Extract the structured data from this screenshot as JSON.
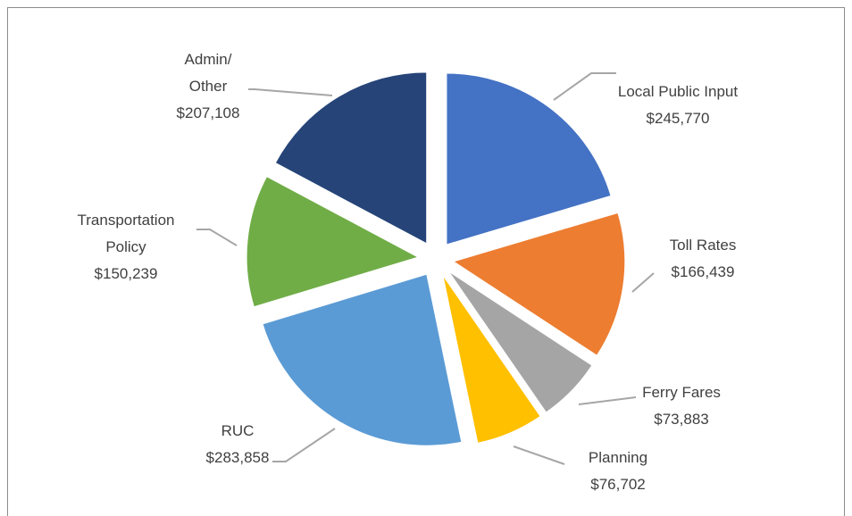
{
  "chart_data": {
    "type": "pie",
    "categories": [
      "Local Public Input",
      "Toll Rates",
      "Ferry Fares",
      "Planning",
      "RUC",
      "Transportation\nPolicy",
      "Admin/\nOther"
    ],
    "values": [
      245770,
      166439,
      73883,
      76702,
      283858,
      150239,
      207108
    ],
    "value_labels": [
      "$245,770",
      "$166,439",
      "$73,883",
      "$76,702",
      "$283,858",
      "$150,239",
      "$207,108"
    ],
    "colors": [
      "#4472c4",
      "#ed7d31",
      "#a5a5a5",
      "#ffc000",
      "#5b9bd5",
      "#70ad47",
      "#264478"
    ]
  }
}
